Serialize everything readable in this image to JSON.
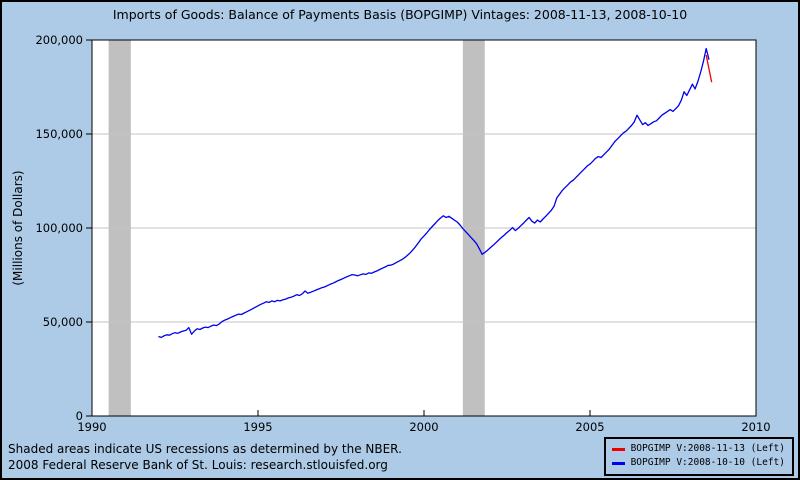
{
  "page": {
    "background": "#adcae6",
    "border_color": "#000000"
  },
  "title": "Imports of Goods: Balance of Payments Basis (BOPGIMP) Vintages: 2008-11-13, 2008-10-10",
  "footer": {
    "line1": "Shaded areas indicate US recessions as determined by the NBER.",
    "line2": "2008 Federal Reserve Bank of St. Louis: research.stlouisfed.org"
  },
  "chart_data": {
    "type": "line",
    "title": "Imports of Goods: Balance of Payments Basis (BOPGIMP) Vintages: 2008-11-13, 2008-10-10",
    "xlabel": "",
    "ylabel": "(Millions of Dollars)",
    "xlim": [
      1990,
      2010
    ],
    "ylim": [
      0,
      200000
    ],
    "x_ticks": [
      1990,
      1995,
      2000,
      2005,
      2010
    ],
    "x_tick_labels": [
      "1990",
      "1995",
      "2000",
      "2005",
      "2010"
    ],
    "y_ticks": [
      0,
      50000,
      100000,
      150000,
      200000
    ],
    "y_tick_labels": [
      "0",
      "50,000",
      "100,000",
      "150,000",
      "200,000"
    ],
    "grid": true,
    "plot_background": "#ffffff",
    "grid_color": "#c3c3c3",
    "recession_color": "#c0c0c0",
    "frame_color": "#000000",
    "legend_position": "bottom-right",
    "recessions": [
      {
        "start": 1990.5,
        "end": 1991.17
      },
      {
        "start": 2001.17,
        "end": 2001.83
      }
    ],
    "series": [
      {
        "name": "BOPGIMP V:2008-11-13 (Left)",
        "color": "#ee0000",
        "start_year": 2008,
        "start_month": 7,
        "values": [
          192000,
          184500,
          177500
        ]
      },
      {
        "name": "BOPGIMP V:2008-10-10 (Left)",
        "color": "#0000ee",
        "start_year": 1992,
        "start_month": 1,
        "values": [
          42300,
          41800,
          42600,
          43200,
          43000,
          43800,
          44300,
          44000,
          44700,
          45200,
          45600,
          47000,
          43500,
          45200,
          46400,
          46000,
          46800,
          47300,
          47000,
          47800,
          48400,
          48100,
          49000,
          50200,
          51000,
          51600,
          52300,
          53000,
          53600,
          54200,
          54000,
          54800,
          55500,
          56200,
          57000,
          57800,
          58600,
          59400,
          60000,
          60800,
          60400,
          61200,
          60800,
          61500,
          61200,
          61800,
          62200,
          62800,
          63200,
          63800,
          64500,
          64100,
          65000,
          66500,
          65300,
          65800,
          66400,
          67000,
          67600,
          68200,
          68600,
          69300,
          70000,
          70600,
          71300,
          72000,
          72600,
          73300,
          74000,
          74600,
          75200,
          75000,
          74600,
          75100,
          75600,
          75300,
          76100,
          75900,
          76600,
          77200,
          77900,
          78600,
          79300,
          80100,
          80200,
          80800,
          81600,
          82400,
          83200,
          84200,
          85400,
          86800,
          88400,
          90200,
          92200,
          94200,
          95800,
          97400,
          99200,
          100800,
          102400,
          104000,
          105300,
          106500,
          105600,
          106200,
          105200,
          104200,
          103200,
          101600,
          99800,
          98200,
          96600,
          95000,
          93400,
          91600,
          89000,
          86000,
          87000,
          88200,
          89600,
          90800,
          92200,
          93600,
          95000,
          96200,
          97600,
          98800,
          100200,
          98600,
          99800,
          101200,
          102600,
          104200,
          105600,
          103600,
          102600,
          104200,
          103200,
          104800,
          106200,
          107800,
          109400,
          111500,
          116000,
          118000,
          120000,
          121500,
          123000,
          124500,
          125500,
          127000,
          128500,
          130000,
          131500,
          133000,
          134000,
          135500,
          137000,
          138000,
          137500,
          139000,
          140500,
          142000,
          144000,
          146000,
          147500,
          149000,
          150500,
          151500,
          153000,
          154500,
          156500,
          160000,
          157500,
          155000,
          156000,
          154500,
          155500,
          156500,
          157000,
          158500,
          160000,
          161000,
          162000,
          163000,
          162000,
          163500,
          165000,
          168000,
          172500,
          170500,
          173500,
          176500,
          174000,
          178000,
          183000,
          188500,
          195500,
          189500
        ]
      }
    ]
  }
}
